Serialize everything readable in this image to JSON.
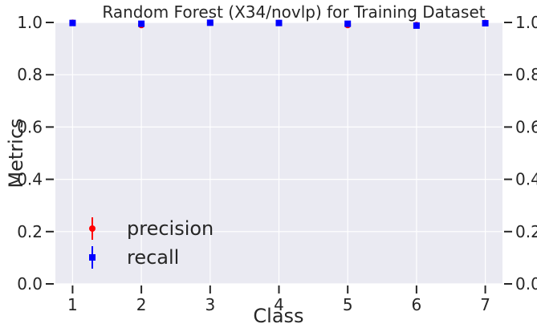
{
  "chart_data": {
    "type": "scatter",
    "title": "Random Forest (X34/novlp) for Training Dataset",
    "xlabel": "Class",
    "ylabel": "Metrics",
    "x": [
      1,
      2,
      3,
      4,
      5,
      6,
      7
    ],
    "x_ticks": [
      "1",
      "2",
      "3",
      "4",
      "5",
      "6",
      "7"
    ],
    "xlim": [
      0.75,
      7.25
    ],
    "ylim": [
      0.0,
      1.0
    ],
    "y_ticks": [
      "0.0",
      "0.2",
      "0.4",
      "0.6",
      "0.8",
      "1.0"
    ],
    "grid": true,
    "legend_position": "lower-left",
    "series": [
      {
        "name": "precision",
        "color": "#ff0000",
        "marker": "circle",
        "values": [
          0.999,
          0.99,
          0.999,
          0.998,
          0.99,
          0.99,
          0.998
        ],
        "errors": [
          0.004,
          0.008,
          0.003,
          0.004,
          0.008,
          0.006,
          0.004
        ]
      },
      {
        "name": "recall",
        "color": "#0000ff",
        "marker": "square",
        "values": [
          0.998,
          0.995,
          0.999,
          0.998,
          0.995,
          0.988,
          0.997
        ],
        "errors": [
          0.003,
          0.005,
          0.003,
          0.003,
          0.005,
          0.006,
          0.003
        ]
      }
    ],
    "plot_background": "#eaeaf2"
  }
}
